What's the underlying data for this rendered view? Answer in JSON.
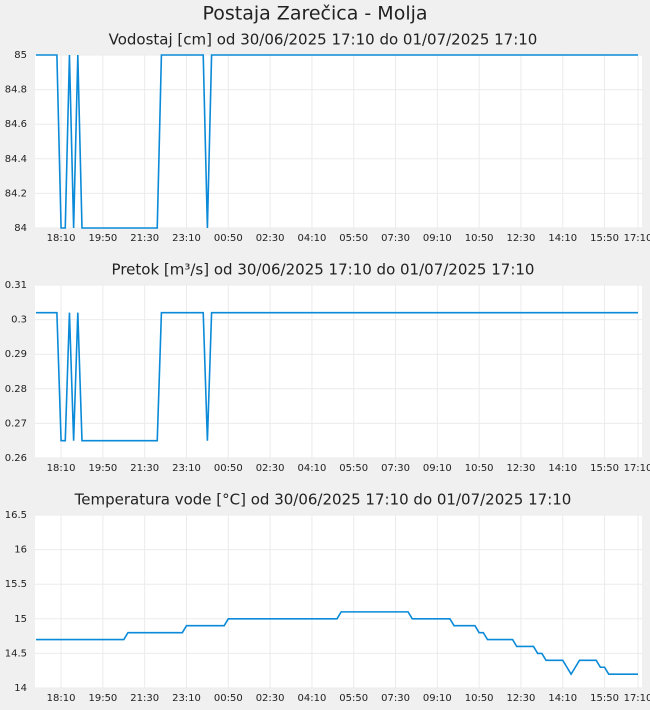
{
  "title": "Postaja Zarečica - Molja",
  "chart_data": [
    {
      "type": "line",
      "title": "Vodostaj [cm] od 30/06/2025 17:10 do 01/07/2025 17:10",
      "x": [
        "17:10",
        "17:20",
        "17:30",
        "17:40",
        "17:50",
        "18:00",
        "18:10",
        "18:20",
        "18:30",
        "18:40",
        "18:50",
        "19:00",
        "19:10",
        "19:20",
        "19:30",
        "19:40",
        "19:50",
        "20:00",
        "20:10",
        "20:20",
        "20:30",
        "20:40",
        "20:50",
        "21:00",
        "21:10",
        "21:20",
        "21:30",
        "21:40",
        "21:50",
        "22:00",
        "22:10",
        "22:20",
        "22:30",
        "22:40",
        "22:50",
        "23:00",
        "23:10",
        "23:20",
        "23:30",
        "23:40",
        "23:50",
        "00:00",
        "00:10",
        "00:20",
        "00:30",
        "00:40",
        "00:50",
        "01:00",
        "01:10",
        "01:20",
        "01:30",
        "01:40",
        "01:50",
        "02:00",
        "02:10",
        "02:20",
        "02:30",
        "02:40",
        "02:50",
        "03:00",
        "03:10",
        "03:20",
        "03:30",
        "03:40",
        "03:50",
        "04:00",
        "04:10",
        "04:20",
        "04:30",
        "04:40",
        "04:50",
        "05:00",
        "05:10",
        "05:20",
        "05:30",
        "05:40",
        "05:50",
        "06:00",
        "06:10",
        "06:20",
        "06:30",
        "06:40",
        "06:50",
        "07:00",
        "07:10",
        "07:20",
        "07:30",
        "07:40",
        "07:50",
        "08:00",
        "08:10",
        "08:20",
        "08:30",
        "08:40",
        "08:50",
        "09:00",
        "09:10",
        "09:20",
        "09:30",
        "09:40",
        "09:50",
        "10:00",
        "10:10",
        "10:20",
        "10:30",
        "10:40",
        "10:50",
        "11:00",
        "11:10",
        "11:20",
        "11:30",
        "11:40",
        "11:50",
        "12:00",
        "12:10",
        "12:20",
        "12:30",
        "12:40",
        "12:50",
        "13:00",
        "13:10",
        "13:20",
        "13:30",
        "13:40",
        "13:50",
        "14:00",
        "14:10",
        "14:20",
        "14:30",
        "14:40",
        "14:50",
        "15:00",
        "15:10",
        "15:20",
        "15:30",
        "15:40",
        "15:50",
        "16:00",
        "16:10",
        "16:20",
        "16:30",
        "16:40",
        "16:50",
        "17:00",
        "17:10"
      ],
      "xticks": [
        "18:10",
        "19:50",
        "21:30",
        "23:10",
        "00:50",
        "02:30",
        "04:10",
        "05:50",
        "07:30",
        "09:10",
        "10:50",
        "12:30",
        "14:10",
        "15:50",
        "17:10"
      ],
      "series": [
        {
          "color": "#0a8ad8",
          "values": [
            85,
            85,
            85,
            85,
            85,
            85,
            84,
            84,
            85,
            84,
            85,
            84,
            84,
            84,
            84,
            84,
            84,
            84,
            84,
            84,
            84,
            84,
            84,
            84,
            84,
            84,
            84,
            84,
            84,
            84,
            85,
            85,
            85,
            85,
            85,
            85,
            85,
            85,
            85,
            85,
            85,
            84,
            85,
            85,
            85,
            85,
            85,
            85,
            85,
            85,
            85,
            85,
            85,
            85,
            85,
            85,
            85,
            85,
            85,
            85,
            85,
            85,
            85,
            85,
            85,
            85,
            85,
            85,
            85,
            85,
            85,
            85,
            85,
            85,
            85,
            85,
            85,
            85,
            85,
            85,
            85,
            85,
            85,
            85,
            85,
            85,
            85,
            85,
            85,
            85,
            85,
            85,
            85,
            85,
            85,
            85,
            85,
            85,
            85,
            85,
            85,
            85,
            85,
            85,
            85,
            85,
            85,
            85,
            85,
            85,
            85,
            85,
            85,
            85,
            85,
            85,
            85,
            85,
            85,
            85,
            85,
            85,
            85,
            85,
            85,
            85,
            85,
            85,
            85,
            85,
            85,
            85,
            85,
            85,
            85,
            85,
            85,
            85,
            85,
            85,
            85,
            85,
            85,
            85,
            85
          ]
        }
      ],
      "ylim": [
        84,
        85
      ],
      "yticks": [
        84,
        84.2,
        84.4,
        84.6,
        84.8,
        85
      ],
      "grid": true
    },
    {
      "type": "line",
      "title": "Pretok [m³/s] od 30/06/2025 17:10 do 01/07/2025 17:10",
      "x": [
        "17:10",
        "17:20",
        "17:30",
        "17:40",
        "17:50",
        "18:00",
        "18:10",
        "18:20",
        "18:30",
        "18:40",
        "18:50",
        "19:00",
        "19:10",
        "19:20",
        "19:30",
        "19:40",
        "19:50",
        "20:00",
        "20:10",
        "20:20",
        "20:30",
        "20:40",
        "20:50",
        "21:00",
        "21:10",
        "21:20",
        "21:30",
        "21:40",
        "21:50",
        "22:00",
        "22:10",
        "22:20",
        "22:30",
        "22:40",
        "22:50",
        "23:00",
        "23:10",
        "23:20",
        "23:30",
        "23:40",
        "23:50",
        "00:00",
        "00:10",
        "00:20",
        "00:30",
        "00:40",
        "00:50",
        "01:00",
        "01:10",
        "01:20",
        "01:30",
        "01:40",
        "01:50",
        "02:00",
        "02:10",
        "02:20",
        "02:30",
        "02:40",
        "02:50",
        "03:00",
        "03:10",
        "03:20",
        "03:30",
        "03:40",
        "03:50",
        "04:00",
        "04:10",
        "04:20",
        "04:30",
        "04:40",
        "04:50",
        "05:00",
        "05:10",
        "05:20",
        "05:30",
        "05:40",
        "05:50",
        "06:00",
        "06:10",
        "06:20",
        "06:30",
        "06:40",
        "06:50",
        "07:00",
        "07:10",
        "07:20",
        "07:30",
        "07:40",
        "07:50",
        "08:00",
        "08:10",
        "08:20",
        "08:30",
        "08:40",
        "08:50",
        "09:00",
        "09:10",
        "09:20",
        "09:30",
        "09:40",
        "09:50",
        "10:00",
        "10:10",
        "10:20",
        "10:30",
        "10:40",
        "10:50",
        "11:00",
        "11:10",
        "11:20",
        "11:30",
        "11:40",
        "11:50",
        "12:00",
        "12:10",
        "12:20",
        "12:30",
        "12:40",
        "12:50",
        "13:00",
        "13:10",
        "13:20",
        "13:30",
        "13:40",
        "13:50",
        "14:00",
        "14:10",
        "14:20",
        "14:30",
        "14:40",
        "14:50",
        "15:00",
        "15:10",
        "15:20",
        "15:30",
        "15:40",
        "15:50",
        "16:00",
        "16:10",
        "16:20",
        "16:30",
        "16:40",
        "16:50",
        "17:00",
        "17:10"
      ],
      "xticks": [
        "18:10",
        "19:50",
        "21:30",
        "23:10",
        "00:50",
        "02:30",
        "04:10",
        "05:50",
        "07:30",
        "09:10",
        "10:50",
        "12:30",
        "14:10",
        "15:50",
        "17:10"
      ],
      "series": [
        {
          "color": "#0a8ad8",
          "values": [
            0.302,
            0.302,
            0.302,
            0.302,
            0.302,
            0.302,
            0.265,
            0.265,
            0.302,
            0.265,
            0.302,
            0.265,
            0.265,
            0.265,
            0.265,
            0.265,
            0.265,
            0.265,
            0.265,
            0.265,
            0.265,
            0.265,
            0.265,
            0.265,
            0.265,
            0.265,
            0.265,
            0.265,
            0.265,
            0.265,
            0.302,
            0.302,
            0.302,
            0.302,
            0.302,
            0.302,
            0.302,
            0.302,
            0.302,
            0.302,
            0.302,
            0.265,
            0.302,
            0.302,
            0.302,
            0.302,
            0.302,
            0.302,
            0.302,
            0.302,
            0.302,
            0.302,
            0.302,
            0.302,
            0.302,
            0.302,
            0.302,
            0.302,
            0.302,
            0.302,
            0.302,
            0.302,
            0.302,
            0.302,
            0.302,
            0.302,
            0.302,
            0.302,
            0.302,
            0.302,
            0.302,
            0.302,
            0.302,
            0.302,
            0.302,
            0.302,
            0.302,
            0.302,
            0.302,
            0.302,
            0.302,
            0.302,
            0.302,
            0.302,
            0.302,
            0.302,
            0.302,
            0.302,
            0.302,
            0.302,
            0.302,
            0.302,
            0.302,
            0.302,
            0.302,
            0.302,
            0.302,
            0.302,
            0.302,
            0.302,
            0.302,
            0.302,
            0.302,
            0.302,
            0.302,
            0.302,
            0.302,
            0.302,
            0.302,
            0.302,
            0.302,
            0.302,
            0.302,
            0.302,
            0.302,
            0.302,
            0.302,
            0.302,
            0.302,
            0.302,
            0.302,
            0.302,
            0.302,
            0.302,
            0.302,
            0.302,
            0.302,
            0.302,
            0.302,
            0.302,
            0.302,
            0.302,
            0.302,
            0.302,
            0.302,
            0.302,
            0.302,
            0.302,
            0.302,
            0.302,
            0.302,
            0.302,
            0.302,
            0.302,
            0.302
          ]
        }
      ],
      "ylim": [
        0.26,
        0.31
      ],
      "yticks": [
        0.26,
        0.27,
        0.28,
        0.29,
        0.3,
        0.31
      ],
      "grid": true
    },
    {
      "type": "line",
      "title": "Temperatura vode [°C] od 30/06/2025 17:10 do 01/07/2025 17:10",
      "x": [
        "17:10",
        "17:20",
        "17:30",
        "17:40",
        "17:50",
        "18:00",
        "18:10",
        "18:20",
        "18:30",
        "18:40",
        "18:50",
        "19:00",
        "19:10",
        "19:20",
        "19:30",
        "19:40",
        "19:50",
        "20:00",
        "20:10",
        "20:20",
        "20:30",
        "20:40",
        "20:50",
        "21:00",
        "21:10",
        "21:20",
        "21:30",
        "21:40",
        "21:50",
        "22:00",
        "22:10",
        "22:20",
        "22:30",
        "22:40",
        "22:50",
        "23:00",
        "23:10",
        "23:20",
        "23:30",
        "23:40",
        "23:50",
        "00:00",
        "00:10",
        "00:20",
        "00:30",
        "00:40",
        "00:50",
        "01:00",
        "01:10",
        "01:20",
        "01:30",
        "01:40",
        "01:50",
        "02:00",
        "02:10",
        "02:20",
        "02:30",
        "02:40",
        "02:50",
        "03:00",
        "03:10",
        "03:20",
        "03:30",
        "03:40",
        "03:50",
        "04:00",
        "04:10",
        "04:20",
        "04:30",
        "04:40",
        "04:50",
        "05:00",
        "05:10",
        "05:20",
        "05:30",
        "05:40",
        "05:50",
        "06:00",
        "06:10",
        "06:20",
        "06:30",
        "06:40",
        "06:50",
        "07:00",
        "07:10",
        "07:20",
        "07:30",
        "07:40",
        "07:50",
        "08:00",
        "08:10",
        "08:20",
        "08:30",
        "08:40",
        "08:50",
        "09:00",
        "09:10",
        "09:20",
        "09:30",
        "09:40",
        "09:50",
        "10:00",
        "10:10",
        "10:20",
        "10:30",
        "10:40",
        "10:50",
        "11:00",
        "11:10",
        "11:20",
        "11:30",
        "11:40",
        "11:50",
        "12:00",
        "12:10",
        "12:20",
        "12:30",
        "12:40",
        "12:50",
        "13:00",
        "13:10",
        "13:20",
        "13:30",
        "13:40",
        "13:50",
        "14:00",
        "14:10",
        "14:20",
        "14:30",
        "14:40",
        "14:50",
        "15:00",
        "15:10",
        "15:20",
        "15:30",
        "15:40",
        "15:50",
        "16:00",
        "16:10",
        "16:20",
        "16:30",
        "16:40",
        "16:50",
        "17:00",
        "17:10"
      ],
      "xticks": [
        "18:10",
        "19:50",
        "21:30",
        "23:10",
        "00:50",
        "02:30",
        "04:10",
        "05:50",
        "07:30",
        "09:10",
        "10:50",
        "12:30",
        "14:10",
        "15:50",
        "17:10"
      ],
      "series": [
        {
          "color": "#0a8ad8",
          "values": [
            14.7,
            14.7,
            14.7,
            14.7,
            14.7,
            14.7,
            14.7,
            14.7,
            14.7,
            14.7,
            14.7,
            14.7,
            14.7,
            14.7,
            14.7,
            14.7,
            14.7,
            14.7,
            14.7,
            14.7,
            14.7,
            14.7,
            14.8,
            14.8,
            14.8,
            14.8,
            14.8,
            14.8,
            14.8,
            14.8,
            14.8,
            14.8,
            14.8,
            14.8,
            14.8,
            14.8,
            14.9,
            14.9,
            14.9,
            14.9,
            14.9,
            14.9,
            14.9,
            14.9,
            14.9,
            14.9,
            15,
            15,
            15,
            15,
            15,
            15,
            15,
            15,
            15,
            15,
            15,
            15,
            15,
            15,
            15,
            15,
            15,
            15,
            15,
            15,
            15,
            15,
            15,
            15,
            15,
            15,
            15,
            15.1,
            15.1,
            15.1,
            15.1,
            15.1,
            15.1,
            15.1,
            15.1,
            15.1,
            15.1,
            15.1,
            15.1,
            15.1,
            15.1,
            15.1,
            15.1,
            15.1,
            15,
            15,
            15,
            15,
            15,
            15,
            15,
            15,
            15,
            15,
            14.9,
            14.9,
            14.9,
            14.9,
            14.9,
            14.9,
            14.8,
            14.8,
            14.7,
            14.7,
            14.7,
            14.7,
            14.7,
            14.7,
            14.7,
            14.6,
            14.6,
            14.6,
            14.6,
            14.6,
            14.5,
            14.5,
            14.4,
            14.4,
            14.4,
            14.4,
            14.4,
            14.3,
            14.2,
            14.3,
            14.4,
            14.4,
            14.4,
            14.4,
            14.4,
            14.3,
            14.3,
            14.2,
            14.2,
            14.2,
            14.2,
            14.2,
            14.2,
            14.2,
            14.2
          ]
        }
      ],
      "ylim": [
        14,
        16.5
      ],
      "yticks": [
        14,
        14.5,
        15,
        15.5,
        16,
        16.5
      ],
      "grid": true
    }
  ]
}
